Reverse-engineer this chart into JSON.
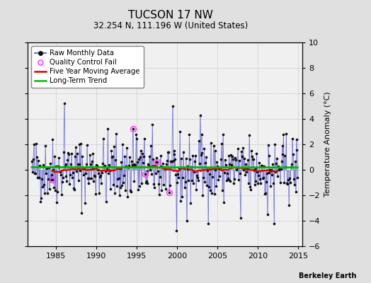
{
  "title": "TUCSON 17 NW",
  "subtitle": "32.254 N, 111.196 W (United States)",
  "ylabel": "Temperature Anomaly (°C)",
  "watermark": "Berkeley Earth",
  "ylim": [
    -6,
    10
  ],
  "yticks": [
    -6,
    -4,
    -2,
    0,
    2,
    4,
    6,
    8,
    10
  ],
  "xlim": [
    1981.5,
    2015.5
  ],
  "xticks": [
    1985,
    1990,
    1995,
    2000,
    2005,
    2010,
    2015
  ],
  "x_start_year": 1982,
  "n_months": 396,
  "seed": 42,
  "background_color": "#e0e0e0",
  "plot_bg_color": "#f0f0f0",
  "raw_line_color": "#4444cc",
  "raw_dot_color": "#111111",
  "moving_avg_color": "#dd0000",
  "trend_color": "#00bb00",
  "qc_fail_color": "#ff44ff",
  "legend_labels": [
    "Raw Monthly Data",
    "Quality Control Fail",
    "Five Year Moving Average",
    "Long-Term Trend"
  ],
  "qc_fail_indices": [
    30,
    150,
    168,
    186,
    204
  ],
  "title_fontsize": 11,
  "subtitle_fontsize": 8.5,
  "tick_fontsize": 8,
  "ylabel_fontsize": 8
}
